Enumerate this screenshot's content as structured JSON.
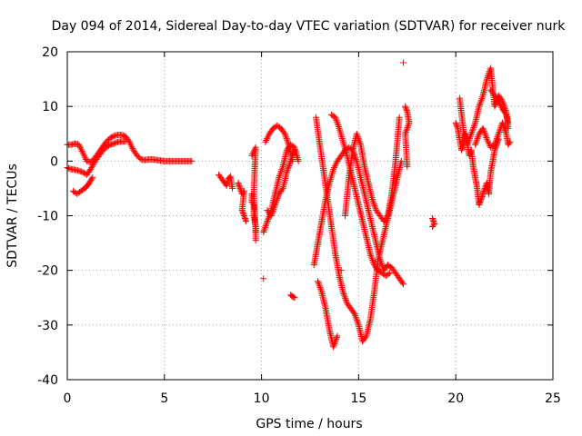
{
  "chart_data": {
    "type": "scatter",
    "title": "Day 094 of 2014, Sidereal Day-to-day VTEC variation (SDTVAR) for receiver nurk",
    "xlabel": "GPS time / hours",
    "ylabel": "SDTVAR / TECUs",
    "xlim": [
      0,
      25
    ],
    "ylim": [
      -40,
      20
    ],
    "xticks": [
      0,
      5,
      10,
      15,
      20,
      25
    ],
    "yticks": [
      -40,
      -30,
      -20,
      -10,
      0,
      10,
      20
    ],
    "xtick_labels": [
      "0",
      "5",
      "10",
      "15",
      "20",
      "25"
    ],
    "ytick_labels": [
      "-40",
      "-30",
      "-20",
      "-10",
      "0",
      "10",
      "20"
    ],
    "grid": true,
    "marker": "+",
    "marker_color": "#ff0000",
    "series": [
      {
        "name": "arc-1",
        "x": [
          0.0,
          0.2,
          0.4,
          0.6,
          0.8,
          1.0,
          1.2,
          1.4,
          1.6,
          1.8,
          2.0,
          2.2,
          2.4,
          2.6,
          2.8,
          3.0,
          3.2,
          3.4,
          3.6,
          3.8,
          4.0,
          4.2,
          4.4,
          4.6,
          4.8,
          5.0,
          5.2,
          5.4,
          5.6,
          5.8,
          6.0,
          6.2,
          6.4
        ],
        "y": [
          3.0,
          3.0,
          3.2,
          3.0,
          1.5,
          0.0,
          -0.2,
          0.5,
          1.5,
          2.5,
          3.5,
          4.2,
          4.6,
          4.8,
          4.8,
          4.5,
          3.5,
          2.0,
          1.0,
          0.3,
          0.2,
          0.3,
          0.3,
          0.2,
          0.1,
          0.0,
          0.0,
          0.0,
          0.0,
          0.0,
          0.0,
          0.0,
          0.0
        ]
      },
      {
        "name": "arc-2",
        "x": [
          0.0,
          0.2,
          0.4,
          0.6,
          0.8,
          1.0,
          1.2,
          1.4,
          1.6,
          1.8,
          2.0,
          2.2,
          2.4,
          2.6,
          2.8,
          3.0
        ],
        "y": [
          -1.2,
          -1.5,
          -1.6,
          -1.8,
          -2.0,
          -2.5,
          -1.5,
          -0.2,
          0.8,
          1.8,
          2.5,
          3.0,
          3.2,
          3.5,
          3.6,
          3.6
        ]
      },
      {
        "name": "arc-3",
        "x": [
          0.3,
          0.5,
          0.7,
          0.9,
          1.1,
          1.3
        ],
        "y": [
          -5.5,
          -6.0,
          -5.5,
          -5.0,
          -4.2,
          -3.0
        ]
      },
      {
        "name": "arc-4",
        "x": [
          7.8,
          7.9,
          8.0,
          8.1,
          8.2,
          8.3,
          8.4,
          8.5
        ],
        "y": [
          -2.5,
          -3.0,
          -3.5,
          -4.0,
          -4.5,
          -3.2,
          -2.8,
          -5.0
        ]
      },
      {
        "name": "arc-5",
        "x": [
          8.8,
          8.9,
          9.0,
          9.1,
          9.0,
          9.1,
          9.2
        ],
        "y": [
          -4.0,
          -5.0,
          -6.0,
          -5.5,
          -9.0,
          -10.0,
          -11.0
        ]
      },
      {
        "name": "arc-6",
        "x": [
          9.5,
          9.5,
          9.6,
          9.6,
          9.7,
          9.7,
          9.5,
          9.7,
          9.6,
          9.7
        ],
        "y": [
          -6.0,
          -7.5,
          -8.0,
          -10.0,
          -12.0,
          -14.5,
          1.0,
          2.5,
          -5.5,
          -13.0
        ]
      },
      {
        "name": "arc-7",
        "x": [
          10.1,
          10.3,
          10.5,
          10.7,
          10.9,
          11.1,
          11.3,
          11.5,
          11.7,
          11.9
        ],
        "y": [
          -13.0,
          -11.0,
          -9.0,
          -6.0,
          -3.0,
          -1.0,
          2.0,
          3.0,
          2.5,
          0.0
        ]
      },
      {
        "name": "arc-8",
        "x": [
          10.2,
          10.4,
          10.6,
          10.8,
          11.0,
          11.2,
          11.4,
          11.6
        ],
        "y": [
          3.5,
          5.0,
          6.0,
          6.5,
          6.0,
          5.0,
          3.0,
          0.0
        ]
      },
      {
        "name": "arc-9",
        "x": [
          10.3,
          10.5,
          10.7,
          10.9,
          11.1,
          11.3,
          11.5,
          11.7
        ],
        "y": [
          -9.0,
          -10.0,
          -8.0,
          -6.0,
          -5.0,
          -2.0,
          0.0,
          2.0
        ]
      },
      {
        "name": "arc-10",
        "x": [
          11.5,
          11.6,
          11.7
        ],
        "y": [
          -24.5,
          -24.8,
          -25.0
        ]
      },
      {
        "name": "arc-11",
        "x": [
          10.1
        ],
        "y": [
          -21.5
        ]
      },
      {
        "name": "arc-12",
        "x": [
          12.7,
          12.9,
          13.1,
          13.3,
          13.5,
          13.7,
          13.9,
          14.1,
          14.3,
          14.5,
          14.7,
          14.9,
          15.1,
          15.3,
          15.5,
          15.7,
          15.9,
          16.1,
          16.3,
          16.5,
          16.7,
          16.9,
          17.1,
          17.3
        ],
        "y": [
          -19.0,
          -15.0,
          -11.0,
          -7.0,
          -4.0,
          -1.5,
          0.0,
          1.0,
          2.0,
          2.5,
          2.0,
          0.0,
          -3.0,
          -6.0,
          -9.0,
          -12.0,
          -15.0,
          -18.0,
          -20.0,
          -19.0,
          -19.5,
          -20.5,
          -21.5,
          -22.5
        ]
      },
      {
        "name": "arc-13",
        "x": [
          12.8,
          13.0,
          13.2,
          13.4,
          13.6,
          13.8,
          14.0,
          14.2,
          14.4,
          14.6,
          14.8,
          15.0,
          15.2,
          15.4,
          15.6,
          15.8,
          16.0,
          16.2,
          16.4,
          16.6,
          16.8,
          17.0,
          17.2
        ],
        "y": [
          8.0,
          3.0,
          -2.0,
          -7.0,
          -12.0,
          -17.0,
          -21.0,
          -24.0,
          -26.0,
          -27.0,
          -28.0,
          -30.0,
          -33.0,
          -32.0,
          -29.0,
          -24.0,
          -18.0,
          -15.0,
          -12.0,
          -9.0,
          -6.0,
          -3.0,
          0.0
        ]
      },
      {
        "name": "arc-14",
        "x": [
          12.9,
          13.1,
          13.3,
          13.5,
          13.7,
          13.9,
          14.1,
          14.3,
          14.5,
          14.7,
          14.9,
          15.1,
          15.3,
          15.5,
          15.7,
          15.9,
          16.1,
          16.3,
          16.5,
          16.7,
          16.9,
          17.1,
          17.3
        ],
        "y": [
          -22.0,
          -24.0,
          -27.0,
          -31.0,
          -34.0,
          -32.0,
          -20.0,
          -10.0,
          -3.0,
          2.0,
          5.0,
          3.0,
          -1.0,
          -4.0,
          -7.0,
          -9.0,
          -10.0,
          -11.0,
          -10.0,
          -6.0,
          0.0,
          8.0,
          18.0
        ]
      },
      {
        "name": "arc-15",
        "x": [
          13.6,
          13.8,
          14.0,
          14.2,
          14.4,
          14.6,
          14.8,
          15.0,
          15.2,
          15.4,
          15.6,
          15.8,
          16.0,
          16.2,
          16.4,
          16.6
        ],
        "y": [
          8.5,
          8.0,
          6.0,
          3.5,
          1.0,
          -2.0,
          -5.0,
          -8.0,
          -11.0,
          -14.0,
          -17.0,
          -19.0,
          -20.0,
          -20.5,
          -21.0,
          -20.5
        ]
      },
      {
        "name": "arc-16",
        "x": [
          17.4,
          17.5,
          17.6,
          17.4,
          17.5
        ],
        "y": [
          10.0,
          9.0,
          7.0,
          5.0,
          -1.0
        ]
      },
      {
        "name": "arc-17",
        "x": [
          18.8,
          18.9,
          18.8
        ],
        "y": [
          -10.5,
          -11.5,
          -12.0
        ]
      },
      {
        "name": "arc-18",
        "x": [
          20.0,
          20.1,
          20.2,
          20.3,
          20.4,
          20.5,
          20.6,
          20.7,
          20.8,
          20.9,
          21.0,
          21.1,
          21.2,
          21.3,
          21.4,
          21.5,
          21.6,
          21.7,
          21.8,
          21.9,
          22.0,
          22.1,
          22.2
        ],
        "y": [
          7.0,
          6.0,
          4.0,
          2.0,
          3.0,
          5.0,
          3.0,
          1.0,
          2.0,
          -1.0,
          -3.0,
          -5.0,
          -8.0,
          -7.0,
          -6.0,
          -5.0,
          -4.0,
          -6.0,
          -2.0,
          0.0,
          2.0,
          3.0,
          4.0
        ]
      },
      {
        "name": "arc-19",
        "x": [
          20.2,
          20.4,
          20.6,
          20.8,
          21.0,
          21.2,
          21.4,
          21.6,
          21.8,
          22.0,
          22.2,
          22.4,
          22.6,
          22.7
        ],
        "y": [
          11.5,
          5.5,
          3.0,
          5.0,
          7.0,
          10.0,
          12.0,
          15.0,
          17.0,
          10.0,
          12.0,
          11.0,
          9.0,
          6.0
        ]
      },
      {
        "name": "arc-20",
        "x": [
          21.0,
          21.2,
          21.4,
          21.6,
          21.8,
          22.0,
          22.2,
          22.4,
          22.6,
          22.7,
          22.8
        ],
        "y": [
          3.0,
          5.0,
          6.0,
          4.0,
          2.5,
          3.0,
          5.0,
          7.0,
          5.0,
          3.0,
          3.5
        ]
      },
      {
        "name": "arc-21",
        "x": [
          21.8,
          22.0,
          22.2,
          22.4,
          22.6,
          22.7
        ],
        "y": [
          13.0,
          12.0,
          11.0,
          9.5,
          8.5,
          7.0
        ]
      }
    ]
  }
}
